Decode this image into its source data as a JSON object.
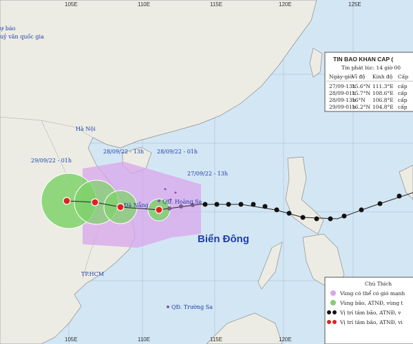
{
  "map": {
    "agency": [
      "ự báo",
      "uỷ văn quốc gia"
    ],
    "longitude_labels": [
      "105E",
      "110E",
      "115E",
      "120E",
      "125E"
    ],
    "places": {
      "hanoi": "Hà Nội",
      "danang": "Đà Nẵng",
      "hoangsa": "QĐ. Hoàng Sa",
      "sea": "Biển Đông",
      "hcm": "TP.HCM",
      "truongsa": "QĐ. Trường Sa"
    },
    "time_labels": [
      "29/09/22 - 01h",
      "28/09/22 - 13h",
      "28/09/22 - 01h",
      "27/09/22 - 13h"
    ]
  },
  "bulletin": {
    "title": "TIN BAO KHAN CAP (",
    "issued": "Tin phát lúc: 14 giờ 00",
    "columns": [
      "Ngày-giờ",
      "Vĩ độ",
      "Kinh độ",
      "Cấp"
    ],
    "rows": [
      [
        "27/09-13h",
        "15.6°N",
        "111.3°E",
        "cấp"
      ],
      [
        "28/09-01h",
        "15.7°N",
        "108.6°E",
        "cấp"
      ],
      [
        "28/09-13h",
        "16°N",
        "106.8°E",
        "cấp"
      ],
      [
        "29/09-01h",
        "16.2°N",
        "104.8°E",
        "cấp"
      ]
    ]
  },
  "legend": {
    "title": "Chú Thích",
    "items": [
      "Vùng có thể có gió mạnh",
      "Vùng bão, ATNĐ, vùng t",
      "Vị trí tâm bão, ATNĐ, v",
      "Vị trí tâm bão, ATNĐ, vi"
    ]
  }
}
